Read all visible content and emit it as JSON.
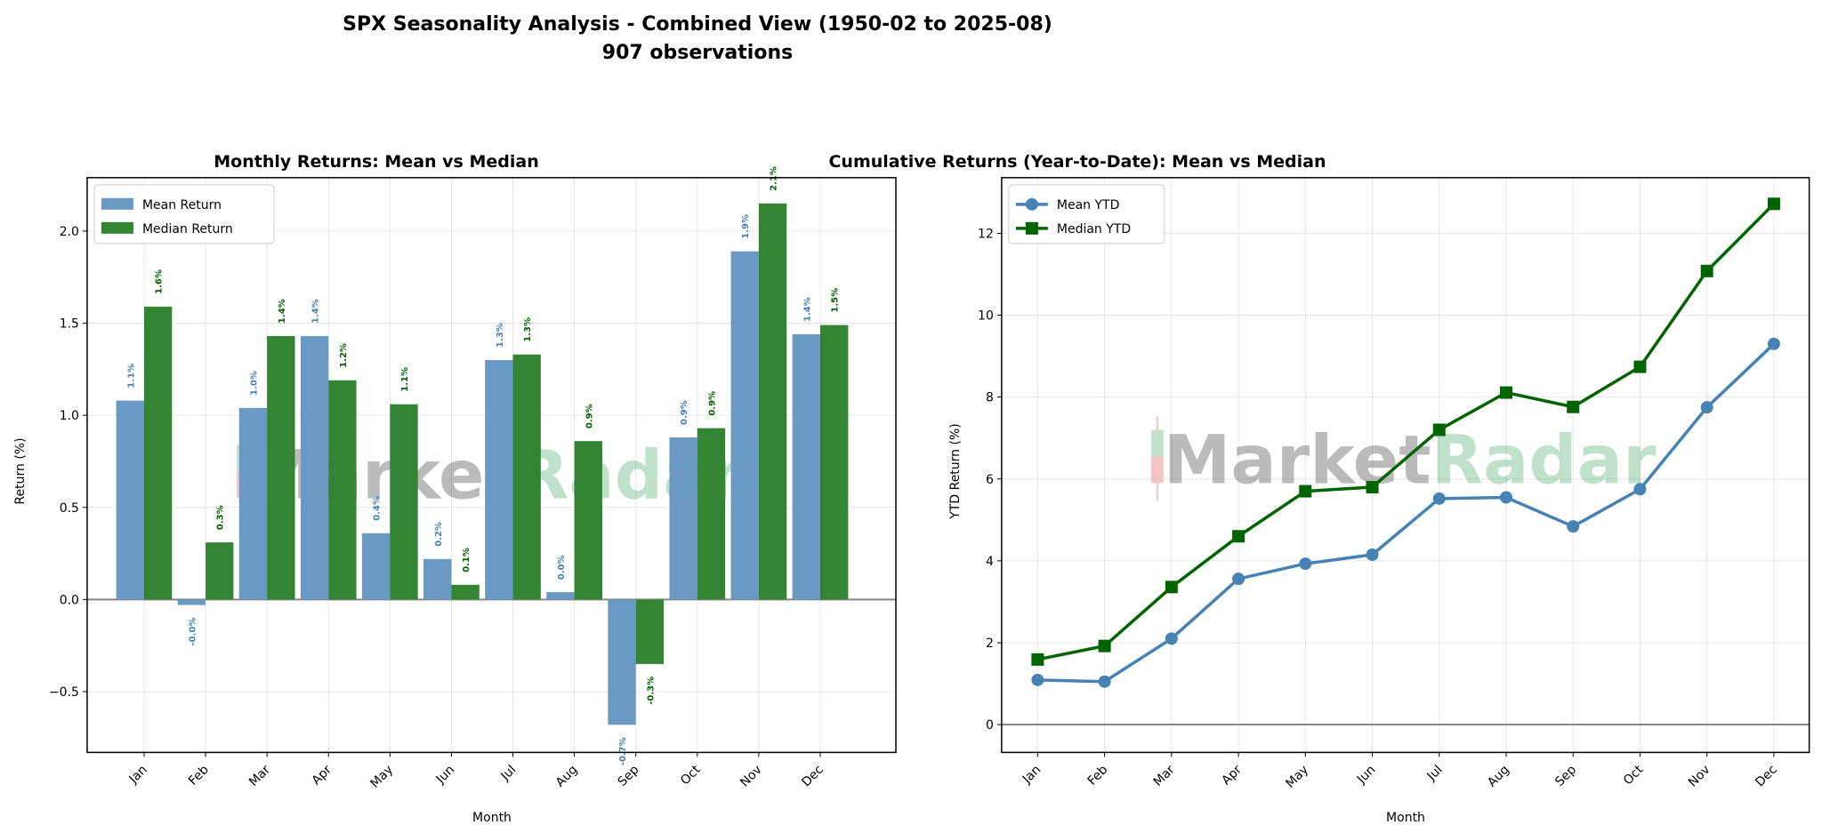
{
  "title": "SPX Seasonality Analysis - Combined View (1950-02 to 2025-08)",
  "subtitle": "907 observations",
  "watermark": {
    "part1": "Market",
    "part2": "Radar"
  },
  "colors": {
    "mean": "#4682b4",
    "median": "#006400",
    "mean_bar": "#6a9ac4",
    "median_bar": "#338533"
  },
  "chart_data": [
    {
      "type": "bar",
      "title": "Monthly Returns: Mean vs Median",
      "xlabel": "Month",
      "ylabel": "Return (%)",
      "ylim": [
        -0.83,
        2.29
      ],
      "yticks": [
        "−0.5",
        "0.0",
        "0.5",
        "1.0",
        "1.5",
        "2.0"
      ],
      "ytick_values": [
        -0.5,
        0,
        0.5,
        1.0,
        1.5,
        2.0
      ],
      "grid": true,
      "legend": "top-left",
      "categories": [
        "Jan",
        "Feb",
        "Mar",
        "Apr",
        "May",
        "Jun",
        "Jul",
        "Aug",
        "Sep",
        "Oct",
        "Nov",
        "Dec"
      ],
      "series": [
        {
          "name": "Mean Return",
          "values": [
            1.08,
            -0.03,
            1.04,
            1.43,
            0.36,
            0.22,
            1.3,
            0.04,
            -0.68,
            0.88,
            1.89,
            1.44
          ],
          "labels": [
            "1.1%",
            "-0.0%",
            "1.0%",
            "1.4%",
            "0.4%",
            "0.2%",
            "1.3%",
            "0.0%",
            "-0.7%",
            "0.9%",
            "1.9%",
            "1.4%"
          ]
        },
        {
          "name": "Median Return",
          "values": [
            1.59,
            0.31,
            1.43,
            1.19,
            1.06,
            0.08,
            1.33,
            0.86,
            -0.35,
            0.93,
            2.15,
            1.49
          ],
          "labels": [
            "1.6%",
            "0.3%",
            "1.4%",
            "1.2%",
            "1.1%",
            "0.1%",
            "1.3%",
            "0.9%",
            "-0.3%",
            "0.9%",
            "2.1%",
            "1.5%"
          ]
        }
      ]
    },
    {
      "type": "line",
      "title": "Cumulative Returns (Year-to-Date): Mean vs Median",
      "xlabel": "Month",
      "ylabel": "YTD Return (%)",
      "ylim": [
        -0.68,
        13.36
      ],
      "yticks": [
        "0",
        "2",
        "4",
        "6",
        "8",
        "10",
        "12"
      ],
      "ytick_values": [
        0,
        2,
        4,
        6,
        8,
        10,
        12
      ],
      "grid": true,
      "legend": "top-left",
      "categories": [
        "Jan",
        "Feb",
        "Mar",
        "Apr",
        "May",
        "Jun",
        "Jul",
        "Aug",
        "Sep",
        "Oct",
        "Nov",
        "Dec"
      ],
      "series": [
        {
          "name": "Mean YTD",
          "marker": "circle",
          "values": [
            1.09,
            1.05,
            2.1,
            3.56,
            3.93,
            4.15,
            5.52,
            5.55,
            4.84,
            5.75,
            7.75,
            9.3
          ]
        },
        {
          "name": "Median YTD",
          "marker": "square",
          "values": [
            1.59,
            1.92,
            3.36,
            4.6,
            5.7,
            5.8,
            7.2,
            8.11,
            7.76,
            8.74,
            11.08,
            12.72
          ]
        }
      ]
    }
  ]
}
